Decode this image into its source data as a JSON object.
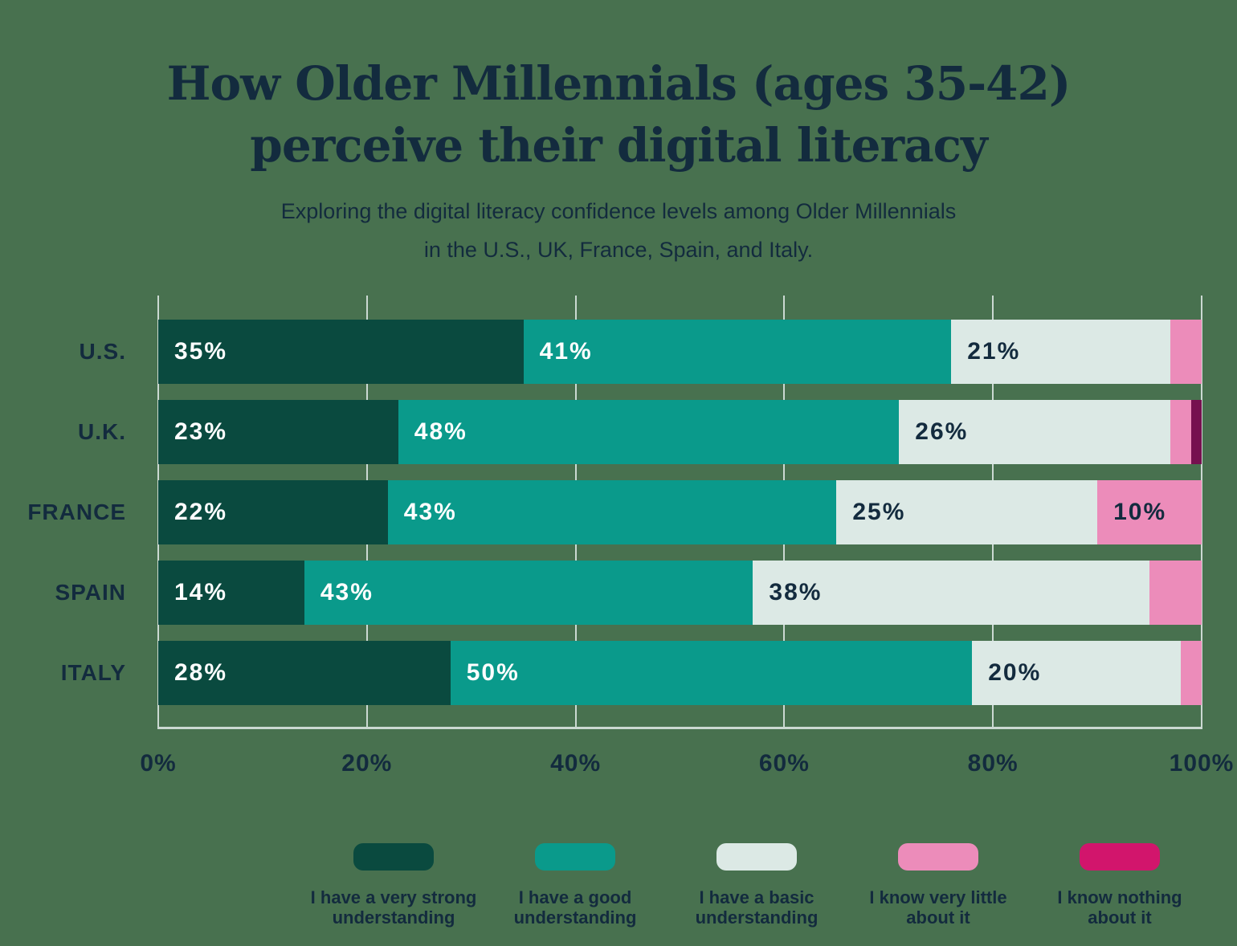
{
  "header": {
    "title_line1": "How Older Millennials (ages 35-42)",
    "title_line2": "perceive their digital literacy",
    "subtitle_line1": "Exploring the digital literacy confidence levels among Older Millennials",
    "subtitle_line2": "in the U.S., UK, France, Spain, and Italy."
  },
  "colors": {
    "background": "#48714F",
    "text": "#132B3E",
    "gridline": "#CBD9D2",
    "bar_label_on_dark": "#FFFFFF",
    "bar_label_on_light": "#132B3E"
  },
  "chart_data": {
    "type": "bar",
    "subtype": "horizontal-stacked",
    "unit": "%",
    "grid": true,
    "xlim": [
      0,
      100
    ],
    "x_ticks": [
      "0%",
      "20%",
      "40%",
      "60%",
      "80%",
      "100%"
    ],
    "categories": [
      "U.S.",
      "U.K.",
      "FRANCE",
      "SPAIN",
      "ITALY"
    ],
    "series": [
      {
        "name": "I have a very strong understanding",
        "color": "#0A4A3F",
        "label_color": "#FFFFFF",
        "values": [
          35,
          23,
          22,
          14,
          28
        ]
      },
      {
        "name": "I have a good understanding",
        "color": "#0A9A8B",
        "label_color": "#FFFFFF",
        "values": [
          41,
          48,
          43,
          43,
          50
        ]
      },
      {
        "name": "I have a basic understanding",
        "color": "#DCE9E5",
        "label_color": "#132B3E",
        "values": [
          21,
          26,
          25,
          38,
          20
        ]
      },
      {
        "name": "I know very little about it",
        "color": "#EC8CBA",
        "label_color": "#132B3E",
        "values": [
          3,
          2,
          10,
          5,
          2
        ]
      },
      {
        "name": "I know nothing about it",
        "color": "#76104F",
        "label_color": "#FFFFFF",
        "values": [
          0,
          1,
          0,
          0,
          0
        ]
      }
    ],
    "data_label_suffix": "%",
    "data_label_min_value_shown": 10,
    "legend_position": "bottom"
  },
  "legend": {
    "items": [
      {
        "line1": "I have a very strong",
        "line2": "understanding",
        "color": "#0A4A3F"
      },
      {
        "line1": "I have a good",
        "line2": "understanding",
        "color": "#0A9A8B"
      },
      {
        "line1": "I have a basic",
        "line2": "understanding",
        "color": "#DCE9E5"
      },
      {
        "line1": "I know very little",
        "line2": "about it",
        "color": "#EC8CBA"
      },
      {
        "line1": "I know nothing",
        "line2": "about it",
        "color": "#D2156C"
      }
    ]
  }
}
